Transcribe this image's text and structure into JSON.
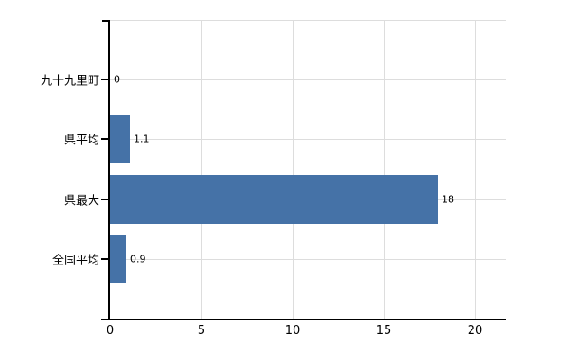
{
  "chart_data": {
    "type": "bar",
    "orientation": "horizontal",
    "title": "",
    "xlabel": "",
    "ylabel": "",
    "categories": [
      "九十九里町",
      "県平均",
      "県最大",
      "全国平均"
    ],
    "values": [
      0,
      1.1,
      18,
      0.9
    ],
    "value_labels": [
      "0",
      "1.1",
      "18",
      "0.9"
    ],
    "xtick_labels": [
      "0",
      "5",
      "10",
      "15",
      "20"
    ],
    "xtick_values": [
      0,
      5,
      10,
      15,
      20
    ],
    "xlim": [
      0,
      21.7
    ],
    "grid": true,
    "legend": false,
    "colors": {
      "bar": "#4572a7",
      "grid": "#dddddd",
      "axis": "#000000",
      "text": "#000000",
      "background": "#ffffff"
    }
  }
}
